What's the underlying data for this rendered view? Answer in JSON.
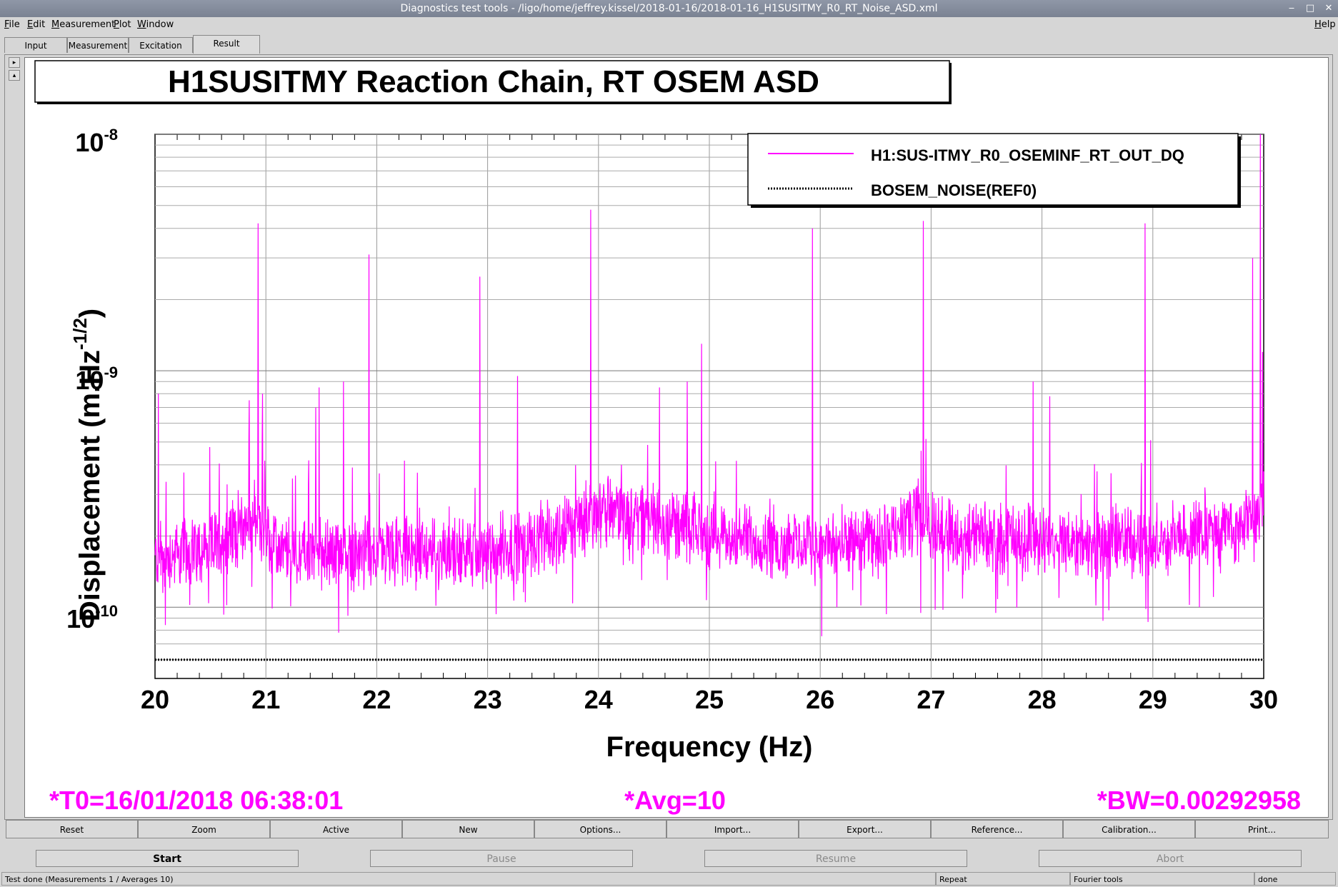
{
  "window": {
    "title": "Diagnostics test tools - /ligo/home/jeffrey.kissel/2018-01-16/2018-01-16_H1SUSITMY_R0_RT_Noise_ASD.xml",
    "controls": [
      "‒",
      "□",
      "✕"
    ]
  },
  "menu": {
    "left": [
      "File",
      "Edit",
      "Measurement",
      "Plot",
      "Window"
    ],
    "right": "Help"
  },
  "tabs": [
    {
      "label": "Input",
      "active": false
    },
    {
      "label": "Measurement",
      "active": false
    },
    {
      "label": "Excitation",
      "active": false
    },
    {
      "label": "Result",
      "active": true
    }
  ],
  "spinner": {
    "up": "▸",
    "down": "▴"
  },
  "plot": {
    "title": "H1SUSITMY Reaction Chain, RT OSEM ASD",
    "xlabel": "Frequency (Hz)",
    "ylabel_main": "Displacement (m.Hz",
    "ylabel_sup": "-1/2",
    "ylabel_close": ")",
    "yticks": [
      {
        "base": "10",
        "exp": "-8",
        "value": 1e-08
      },
      {
        "base": "10",
        "exp": "-9",
        "value": 1e-09
      },
      {
        "base": "10",
        "exp": "-10",
        "value": 1e-10
      }
    ],
    "xticks": [
      "20",
      "21",
      "22",
      "23",
      "24",
      "25",
      "26",
      "27",
      "28",
      "29",
      "30"
    ],
    "legend": [
      {
        "label": "H1:SUS-ITMY_R0_OSEMINF_RT_OUT_DQ",
        "style": "solid",
        "color": "#ff00ff"
      },
      {
        "label": "BOSEM_NOISE(REF0)",
        "style": "dotted",
        "color": "#000000"
      }
    ],
    "info": {
      "t0": "*T0=16/01/2018 06:38:01",
      "avg": "*Avg=10",
      "bw": "*BW=0.00292958"
    },
    "info_color": "#ff00ff"
  },
  "chart_data": {
    "type": "line",
    "title": "H1SUSITMY Reaction Chain, RT OSEM ASD",
    "xlabel": "Frequency (Hz)",
    "ylabel": "Displacement (m.Hz-1/2)",
    "xlim": [
      20,
      30
    ],
    "ylim": [
      5e-11,
      1e-08
    ],
    "yscale": "log",
    "grid": true,
    "legend_position": "top-right",
    "series": [
      {
        "name": "H1:SUS-ITMY_R0_OSEMINF_RT_OUT_DQ",
        "color": "#ff00ff",
        "baseline": [
          [
            20,
            1.6e-10
          ],
          [
            20.5,
            1.8e-10
          ],
          [
            20.9,
            2.4e-10
          ],
          [
            21.1,
            1.7e-10
          ],
          [
            22,
            1.7e-10
          ],
          [
            23,
            1.7e-10
          ],
          [
            23.6,
            2e-10
          ],
          [
            24,
            2.6e-10
          ],
          [
            24.5,
            2.4e-10
          ],
          [
            25,
            2e-10
          ],
          [
            26,
            1.8e-10
          ],
          [
            26.5,
            1.9e-10
          ],
          [
            26.9,
            2.4e-10
          ],
          [
            27.2,
            2e-10
          ],
          [
            28,
            1.9e-10
          ],
          [
            29,
            1.9e-10
          ],
          [
            29.8,
            2.2e-10
          ],
          [
            30,
            2.6e-10
          ]
        ],
        "peaks": [
          [
            20.03,
            8e-10
          ],
          [
            20.85,
            7.5e-10
          ],
          [
            20.93,
            4.2e-09
          ],
          [
            20.97,
            8e-10
          ],
          [
            21.45,
            7e-10
          ],
          [
            21.48,
            8.5e-10
          ],
          [
            21.7,
            9e-10
          ],
          [
            21.93,
            3.1e-09
          ],
          [
            22.93,
            2.5e-09
          ],
          [
            23.27,
            9.5e-10
          ],
          [
            23.93,
            4.8e-09
          ],
          [
            24.55,
            8.5e-10
          ],
          [
            24.8,
            9e-10
          ],
          [
            24.93,
            1.3e-09
          ],
          [
            25.93,
            4e-09
          ],
          [
            26.93,
            4.3e-09
          ],
          [
            27.92,
            9e-10
          ],
          [
            28.07,
            7.8e-10
          ],
          [
            28.93,
            4.2e-09
          ],
          [
            29.9,
            3e-09
          ],
          [
            29.97,
            1e-08
          ],
          [
            29.99,
            1.2e-09
          ]
        ]
      },
      {
        "name": "BOSEM_NOISE(REF0)",
        "color": "#000000",
        "style": "dotted",
        "x": [
          20,
          30
        ],
        "y": [
          6e-11,
          6e-11
        ]
      }
    ]
  },
  "buttons_row1": [
    "Reset",
    "Zoom",
    "Active",
    "New",
    "Options...",
    "Import...",
    "Export...",
    "Reference...",
    "Calibration...",
    "Print..."
  ],
  "buttons_row2": [
    {
      "label": "Start",
      "enabled": true
    },
    {
      "label": "Pause",
      "enabled": false
    },
    {
      "label": "Resume",
      "enabled": false
    },
    {
      "label": "Abort",
      "enabled": false
    }
  ],
  "status": [
    "Test done (Measurements 1 / Averages 10)",
    "Repeat",
    "Fourier tools",
    "done"
  ]
}
